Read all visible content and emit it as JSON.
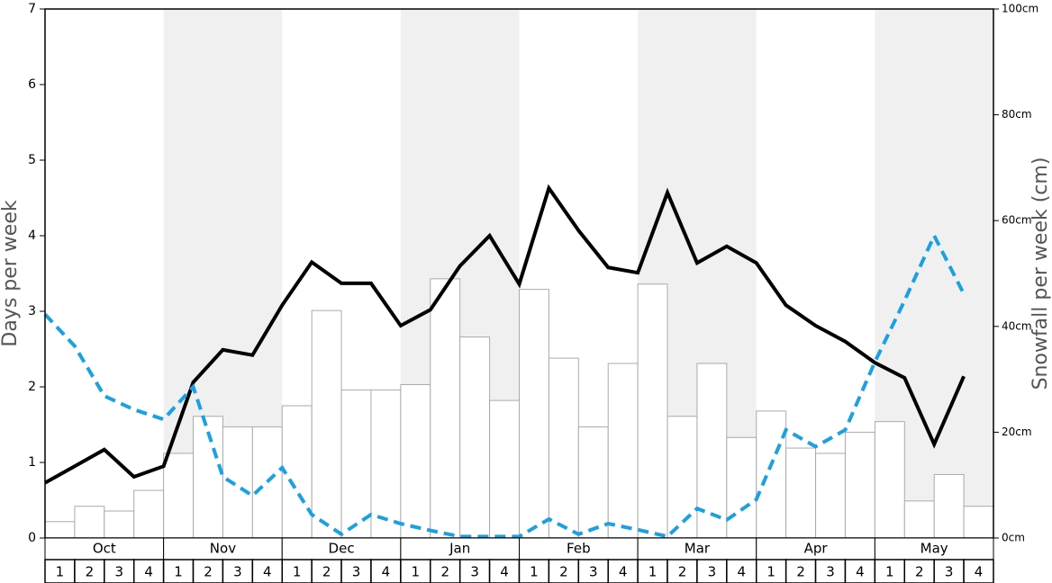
{
  "chart_data": {
    "type": "bar-line",
    "ylabel": "Days per week",
    "y2label": "Snowfall per week (cm)",
    "months": [
      "Oct",
      "Nov",
      "Dec",
      "Jan",
      "Feb",
      "Mar",
      "Apr",
      "May"
    ],
    "categories": [
      "1",
      "2",
      "3",
      "4",
      "1",
      "2",
      "3",
      "4",
      "1",
      "2",
      "3",
      "4",
      "1",
      "2",
      "3",
      "4",
      "1",
      "2",
      "3",
      "4",
      "1",
      "2",
      "3",
      "4",
      "1",
      "2",
      "3",
      "4",
      "1",
      "2",
      "3",
      "4"
    ],
    "ylim": [
      0,
      7
    ],
    "yticks": [
      0,
      1,
      2,
      3,
      4,
      5,
      6,
      7
    ],
    "y2lim": [
      0,
      100
    ],
    "y2ticks": [
      {
        "value": 0,
        "label": "0cm"
      },
      {
        "value": 20,
        "label": "20cm"
      },
      {
        "value": 40,
        "label": "40cm"
      },
      {
        "value": 60,
        "label": "60cm"
      },
      {
        "value": 80,
        "label": "80cm"
      },
      {
        "value": 100,
        "label": "100cm"
      }
    ],
    "band_color": "#f0f0f0",
    "series": [
      {
        "type": "bar",
        "axis": "y2",
        "color": "#ffffff",
        "values": [
          3.1,
          6,
          5.1,
          9,
          16,
          23,
          21,
          21,
          25,
          43,
          28,
          28,
          29,
          49,
          38,
          26,
          47,
          34,
          21,
          33,
          48,
          23,
          33,
          19,
          24,
          17,
          16,
          20,
          22,
          7,
          12,
          6
        ]
      },
      {
        "type": "line",
        "color": "#000000",
        "values": [
          0.73,
          0.95,
          1.17,
          0.81,
          0.95,
          2.06,
          2.49,
          2.42,
          3.08,
          3.65,
          3.37,
          3.37,
          2.81,
          3.02,
          3.6,
          4.0,
          3.36,
          4.63,
          4.07,
          3.58,
          3.51,
          4.57,
          3.64,
          3.86,
          3.64,
          3.08,
          2.81,
          2.6,
          2.32,
          2.12,
          1.24,
          2.14
        ]
      },
      {
        "type": "dashed",
        "color": "#1ba1e2",
        "values": [
          2.96,
          2.54,
          1.88,
          1.7,
          1.57,
          2.0,
          0.81,
          0.56,
          0.93,
          0.31,
          0.05,
          0.31,
          0.19,
          0.1,
          0.02,
          0.02,
          0.02,
          0.25,
          0.05,
          0.19,
          0.11,
          0.02,
          0.39,
          0.24,
          0.51,
          1.43,
          1.21,
          1.43,
          2.33,
          3.14,
          4.0,
          3.23
        ]
      }
    ]
  }
}
